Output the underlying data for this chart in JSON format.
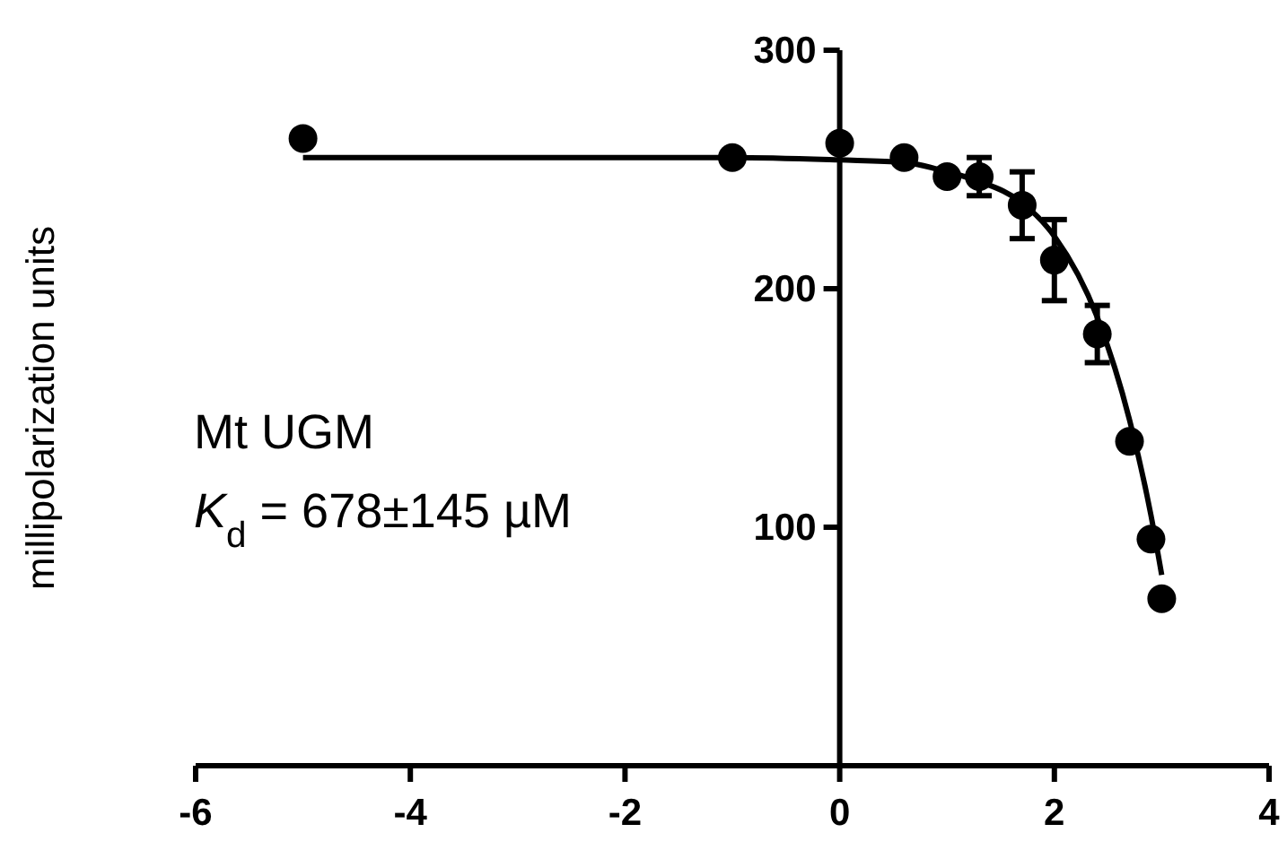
{
  "chart_data": {
    "type": "scatter",
    "ylabel": "millipolarization units",
    "annotations": [
      "Mt UGM",
      "K$_{d}$ = 678±145 µM"
    ],
    "xlim": [
      -6,
      4
    ],
    "xticks": [
      -6,
      -4,
      -2,
      0,
      2,
      4
    ],
    "ylim": [
      0,
      300
    ],
    "yticks": [
      {
        "value": 0,
        "label": null
      },
      100,
      200,
      300
    ],
    "grid": false,
    "marker": "circle",
    "series": [
      {
        "color": "#000000",
        "x": [
          -5,
          -1,
          0,
          0.6,
          1.0,
          1.3,
          1.7,
          2.0,
          2.4,
          2.7,
          2.9,
          3.0
        ],
        "values": [
          263,
          255,
          261,
          255,
          247,
          247,
          235,
          212,
          181,
          136,
          95,
          70
        ],
        "errors": [
          null,
          null,
          null,
          null,
          null,
          8,
          14,
          17,
          12,
          null,
          null,
          null
        ]
      },
      {
        "type": "line",
        "color": "#000000",
        "marker": "none",
        "line_style": "solid",
        "x": [
          -5,
          -1,
          0,
          0.6,
          1.0,
          1.3,
          1.7,
          2.0,
          2.4,
          2.7,
          2.9,
          3.0
        ],
        "values": [
          255,
          255,
          254,
          253,
          249,
          245,
          236,
          222,
          188,
          145,
          105,
          80
        ]
      }
    ]
  }
}
